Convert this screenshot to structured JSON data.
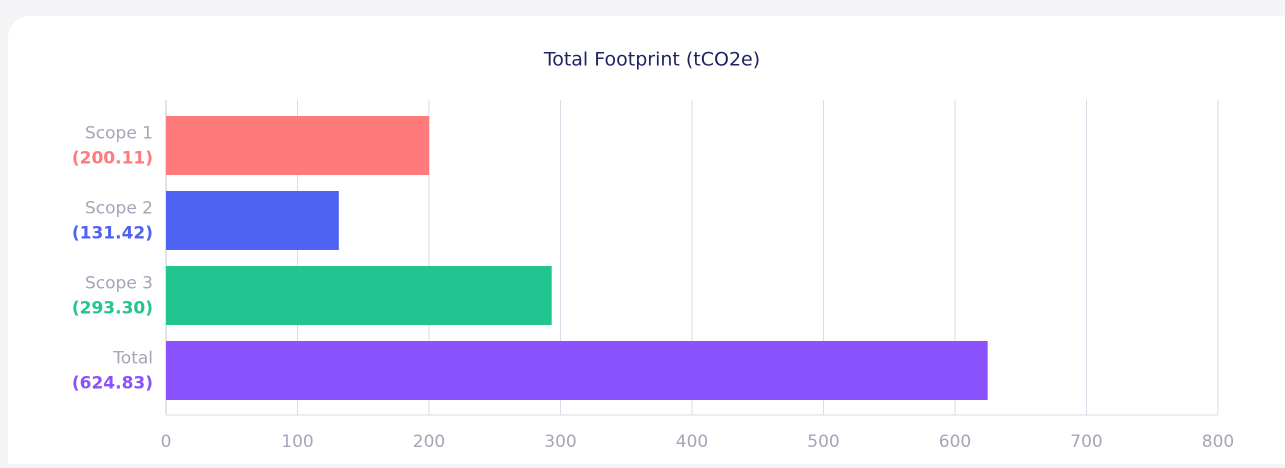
{
  "chart_data": {
    "type": "bar",
    "orientation": "horizontal",
    "title": "Total Footprint (tCO2e)",
    "categories": [
      "Scope 1",
      "Scope 2",
      "Scope 3",
      "Total"
    ],
    "values": [
      200.11,
      131.42,
      293.3,
      624.83
    ],
    "value_labels": [
      "(200.11)",
      "(131.42)",
      "(293.30)",
      "(624.83)"
    ],
    "colors": [
      "#ff7b7b",
      "#4f63f3",
      "#22c48f",
      "#8a52fc"
    ],
    "xlim": [
      0,
      800
    ],
    "xticks": [
      0,
      100,
      200,
      300,
      400,
      500,
      600,
      700,
      800
    ],
    "grid": true
  }
}
